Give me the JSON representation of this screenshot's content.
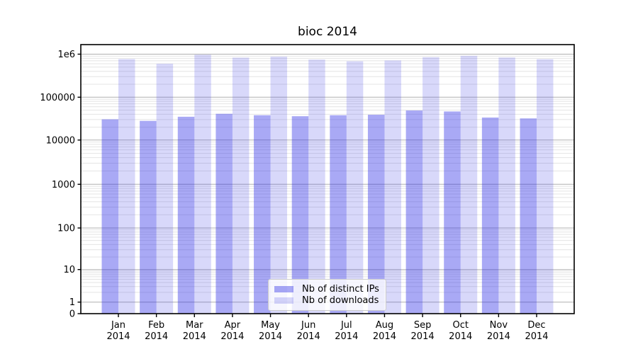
{
  "chart_data": {
    "type": "bar",
    "title": "bioc 2014",
    "categories": [
      "Jan",
      "Feb",
      "Mar",
      "Apr",
      "May",
      "Jun",
      "Jul",
      "Aug",
      "Sep",
      "Oct",
      "Nov",
      "Dec"
    ],
    "category_year": "2014",
    "series": [
      {
        "name": "Nb of distinct IPs",
        "color": "rgba(40,40,230,0.4)",
        "values": [
          30500,
          28000,
          35000,
          41000,
          38000,
          36000,
          38000,
          39000,
          49000,
          46500,
          33500,
          32000
        ]
      },
      {
        "name": "Nb of downloads",
        "color": "rgba(60,60,230,0.2)",
        "values": [
          770000,
          600000,
          970000,
          830000,
          875000,
          750000,
          685000,
          715000,
          850000,
          915000,
          835000,
          765000
        ]
      }
    ],
    "xlabel": "",
    "ylabel": "",
    "yscale": "symlog",
    "ytick_labels": [
      "0",
      "1",
      "10",
      "100",
      "1000",
      "10000",
      "100000",
      "1e6"
    ],
    "ylim": [
      0,
      1700000
    ],
    "grid": "horizontal major and minor",
    "legend_position": "lower center"
  },
  "colors": {
    "axis": "#000000",
    "major_grid": "#b0b0b0",
    "minor_grid": "#e4e4e4",
    "text": "#000000",
    "legend_border": "#cccccc",
    "legend_bg": "rgba(255,255,255,0.8)"
  }
}
